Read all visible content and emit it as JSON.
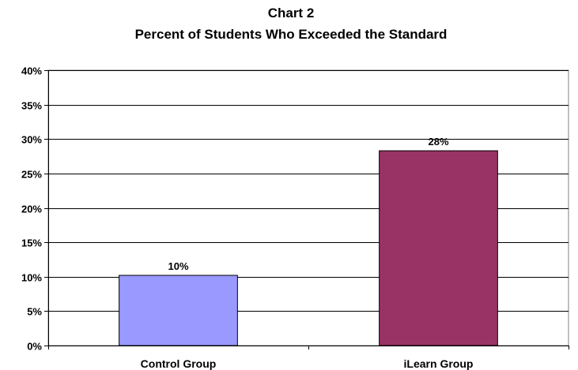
{
  "chart_data": {
    "type": "bar",
    "title": "Chart 2",
    "subtitle": "Percent of Students Who Exceeded the Standard",
    "categories": [
      "Control Group",
      "iLearn Group"
    ],
    "values": [
      10.2,
      28.3
    ],
    "data_labels": [
      "10%",
      "28%"
    ],
    "bar_colors": [
      "#9999ff",
      "#993366"
    ],
    "ylim": [
      0,
      40
    ],
    "yticks": [
      0,
      5,
      10,
      15,
      20,
      25,
      30,
      35,
      40
    ],
    "ytick_labels": [
      "0%",
      "5%",
      "10%",
      "15%",
      "20%",
      "25%",
      "30%",
      "35%",
      "40%"
    ],
    "xlabel": "",
    "ylabel": "",
    "grid": true,
    "legend": "none"
  }
}
